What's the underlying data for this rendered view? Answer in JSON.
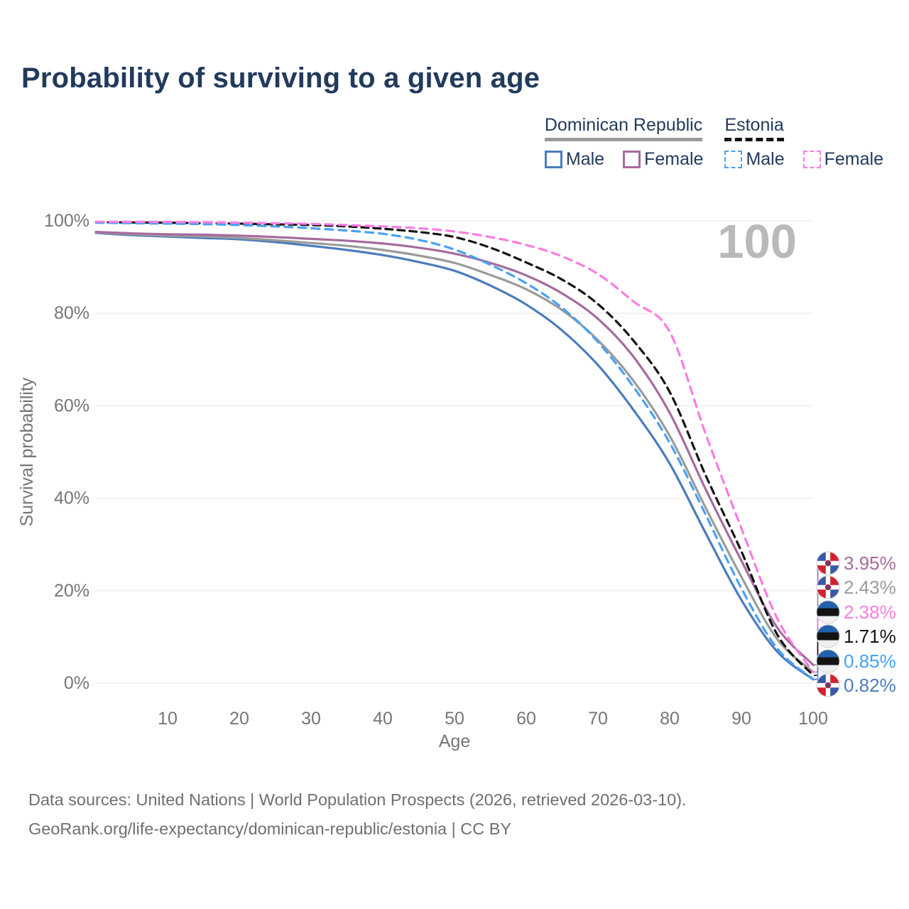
{
  "title": "Probability of surviving to a given age",
  "legend": {
    "groups": [
      {
        "label": "Dominican Republic",
        "line_style": "solid",
        "underline_color": "#9b9b9b",
        "items": [
          {
            "label": "Male",
            "color": "#4b7cbd",
            "dashed": false
          },
          {
            "label": "Female",
            "color": "#a66b9e",
            "dashed": false
          }
        ]
      },
      {
        "label": "Estonia",
        "line_style": "dashed",
        "underline_color": "#141414",
        "items": [
          {
            "label": "Male",
            "color": "#48a1f5",
            "dashed": true
          },
          {
            "label": "Female",
            "color": "#fb7ce1",
            "dashed": true
          }
        ]
      }
    ]
  },
  "chart_data": {
    "type": "line",
    "title": "Probability of surviving to a given age",
    "xlabel": "Age",
    "ylabel": "Survival probability",
    "xlim": [
      0,
      100
    ],
    "ylim": [
      0,
      100
    ],
    "xticks": [
      10,
      20,
      30,
      40,
      50,
      60,
      70,
      80,
      90,
      100
    ],
    "yticks": [
      0,
      20,
      40,
      60,
      80,
      100
    ],
    "ytick_suffix": "%",
    "grid": "horizontal",
    "gridline_color": "#ececec",
    "axis_text_color": "#767676",
    "watermark": "100",
    "watermark_color": "#b9b9b9",
    "series": [
      {
        "name": "Dominican Republic Male",
        "country": "Dominican Republic",
        "sex": "Male",
        "color": "#4b7cbd",
        "dashed": false,
        "points": [
          [
            0,
            97.4
          ],
          [
            5,
            96.9
          ],
          [
            10,
            96.6
          ],
          [
            15,
            96.3
          ],
          [
            20,
            96.0
          ],
          [
            25,
            95.4
          ],
          [
            30,
            94.6
          ],
          [
            35,
            93.7
          ],
          [
            40,
            92.6
          ],
          [
            45,
            91.1
          ],
          [
            50,
            89.2
          ],
          [
            55,
            86.0
          ],
          [
            60,
            81.9
          ],
          [
            65,
            76.3
          ],
          [
            70,
            68.8
          ],
          [
            75,
            59.0
          ],
          [
            80,
            47.5
          ],
          [
            85,
            32.5
          ],
          [
            90,
            18.0
          ],
          [
            95,
            6.8
          ],
          [
            100,
            0.82
          ]
        ]
      },
      {
        "name": "Dominican Republic Both sexes",
        "country": "Dominican Republic",
        "sex": "Both",
        "color": "#9b9b9b",
        "dashed": false,
        "points": [
          [
            0,
            97.5
          ],
          [
            5,
            97.1
          ],
          [
            10,
            96.8
          ],
          [
            15,
            96.6
          ],
          [
            20,
            96.3
          ],
          [
            25,
            95.8
          ],
          [
            30,
            95.2
          ],
          [
            35,
            94.6
          ],
          [
            40,
            93.7
          ],
          [
            45,
            92.5
          ],
          [
            50,
            90.9
          ],
          [
            55,
            88.3
          ],
          [
            60,
            85.2
          ],
          [
            65,
            80.7
          ],
          [
            70,
            74.2
          ],
          [
            75,
            65.3
          ],
          [
            80,
            53.5
          ],
          [
            85,
            38.0
          ],
          [
            90,
            23.0
          ],
          [
            95,
            9.5
          ],
          [
            100,
            2.43
          ]
        ]
      },
      {
        "name": "Dominican Republic Female",
        "country": "Dominican Republic",
        "sex": "Female",
        "color": "#a66b9e",
        "dashed": false,
        "points": [
          [
            0,
            97.6
          ],
          [
            5,
            97.3
          ],
          [
            10,
            97.1
          ],
          [
            15,
            97.0
          ],
          [
            20,
            96.8
          ],
          [
            25,
            96.5
          ],
          [
            30,
            96.1
          ],
          [
            35,
            95.7
          ],
          [
            40,
            95.1
          ],
          [
            45,
            94.2
          ],
          [
            50,
            92.9
          ],
          [
            55,
            90.9
          ],
          [
            60,
            88.2
          ],
          [
            65,
            84.3
          ],
          [
            70,
            78.8
          ],
          [
            75,
            70.5
          ],
          [
            80,
            58.5
          ],
          [
            85,
            42.0
          ],
          [
            90,
            26.5
          ],
          [
            95,
            12.0
          ],
          [
            100,
            3.95
          ]
        ]
      },
      {
        "name": "Estonia Both sexes",
        "country": "Estonia",
        "sex": "Both",
        "color": "#141414",
        "dashed": true,
        "points": [
          [
            0,
            99.7
          ],
          [
            5,
            99.65
          ],
          [
            10,
            99.6
          ],
          [
            15,
            99.5
          ],
          [
            20,
            99.4
          ],
          [
            25,
            99.25
          ],
          [
            30,
            99.1
          ],
          [
            35,
            98.8
          ],
          [
            40,
            98.3
          ],
          [
            45,
            97.6
          ],
          [
            50,
            96.5
          ],
          [
            55,
            94.2
          ],
          [
            60,
            91.0
          ],
          [
            65,
            87.3
          ],
          [
            70,
            82.0
          ],
          [
            75,
            74.0
          ],
          [
            80,
            63.0
          ],
          [
            85,
            45.0
          ],
          [
            90,
            28.5
          ],
          [
            95,
            10.5
          ],
          [
            100,
            1.71
          ]
        ]
      },
      {
        "name": "Estonia Male",
        "country": "Estonia",
        "sex": "Male",
        "color": "#48a1f5",
        "dashed": true,
        "points": [
          [
            0,
            99.6
          ],
          [
            5,
            99.5
          ],
          [
            10,
            99.4
          ],
          [
            15,
            99.3
          ],
          [
            20,
            99.1
          ],
          [
            25,
            98.8
          ],
          [
            30,
            98.4
          ],
          [
            35,
            97.9
          ],
          [
            40,
            97.2
          ],
          [
            45,
            95.9
          ],
          [
            50,
            93.8
          ],
          [
            55,
            90.5
          ],
          [
            60,
            86.5
          ],
          [
            65,
            81.2
          ],
          [
            70,
            73.8
          ],
          [
            75,
            64.0
          ],
          [
            80,
            52.0
          ],
          [
            85,
            36.5
          ],
          [
            90,
            20.5
          ],
          [
            95,
            7.5
          ],
          [
            100,
            0.85
          ]
        ]
      },
      {
        "name": "Estonia Female",
        "country": "Estonia",
        "sex": "Female",
        "color": "#fb7ce1",
        "dashed": true,
        "points": [
          [
            0,
            99.8
          ],
          [
            5,
            99.78
          ],
          [
            10,
            99.75
          ],
          [
            15,
            99.7
          ],
          [
            20,
            99.6
          ],
          [
            25,
            99.5
          ],
          [
            30,
            99.35
          ],
          [
            35,
            99.1
          ],
          [
            40,
            98.8
          ],
          [
            45,
            98.4
          ],
          [
            50,
            97.7
          ],
          [
            55,
            96.5
          ],
          [
            60,
            94.8
          ],
          [
            65,
            92.3
          ],
          [
            70,
            88.5
          ],
          [
            75,
            82.5
          ],
          [
            80,
            76.0
          ],
          [
            85,
            54.0
          ],
          [
            90,
            33.5
          ],
          [
            95,
            14.0
          ],
          [
            100,
            2.38
          ]
        ]
      }
    ],
    "end_labels": [
      {
        "value": "3.95%",
        "numeric": 3.95,
        "color": "#a66b9e",
        "flag": "dominican-republic",
        "series": "Dominican Republic Female"
      },
      {
        "value": "2.43%",
        "numeric": 2.43,
        "color": "#9b9b9b",
        "flag": "dominican-republic",
        "series": "Dominican Republic Both sexes"
      },
      {
        "value": "2.38%",
        "numeric": 2.38,
        "color": "#fb7ce1",
        "flag": "estonia",
        "series": "Estonia Female"
      },
      {
        "value": "1.71%",
        "numeric": 1.71,
        "color": "#141414",
        "flag": "estonia",
        "series": "Estonia Both sexes"
      },
      {
        "value": "0.85%",
        "numeric": 0.85,
        "color": "#48a1f5",
        "flag": "estonia",
        "series": "Estonia Male"
      },
      {
        "value": "0.82%",
        "numeric": 0.82,
        "color": "#4b7cbd",
        "flag": "dominican-republic",
        "series": "Dominican Republic Male"
      }
    ],
    "legend_position": "top-right"
  },
  "footer": {
    "line1": "Data sources: United Nations | World Population Prospects (2026, retrieved 2026-03-10).",
    "line2": "GeoRank.org/life-expectancy/dominican-republic/estonia | CC BY"
  }
}
